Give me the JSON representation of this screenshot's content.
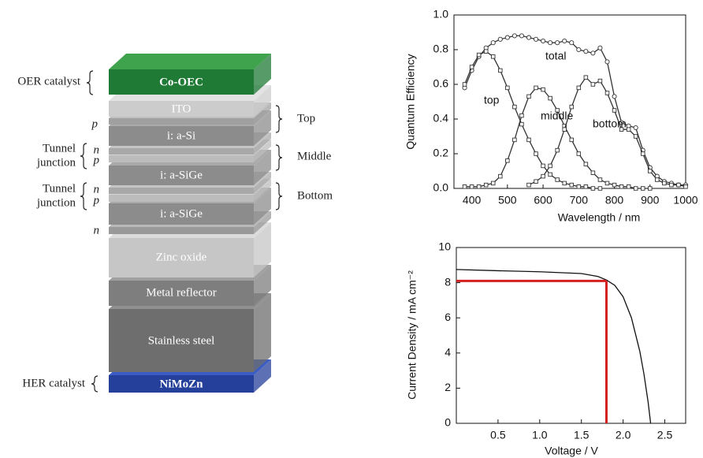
{
  "diagram": {
    "layers": [
      "Co-OEC",
      "ITO",
      "i: a-Si",
      "i: a-SiGe",
      "i: a-SiGe",
      "Zinc oxide",
      "Metal reflector",
      "Stainless steel",
      "NiMoZn"
    ],
    "left_labels": [
      "OER catalyst",
      "p",
      "Tunnel",
      "junction",
      "n",
      "p",
      "Tunnel",
      "junction",
      "n",
      "p",
      "n",
      "HER catalyst"
    ],
    "right_labels": [
      "Top",
      "Middle",
      "Bottom"
    ]
  },
  "chart_data": [
    {
      "type": "line",
      "x_label": "Wavelength / nm",
      "y_label": "Quantum Efficiency",
      "x": [
        380,
        400,
        420,
        440,
        460,
        480,
        500,
        520,
        540,
        560,
        580,
        600,
        620,
        640,
        660,
        680,
        700,
        720,
        740,
        760,
        780,
        800,
        820,
        840,
        860,
        880,
        900,
        920,
        940,
        960,
        980,
        1000
      ],
      "series": [
        {
          "name": "total",
          "color": "#333333",
          "marker": "circle",
          "values": [
            0.58,
            0.68,
            0.76,
            0.81,
            0.84,
            0.86,
            0.87,
            0.88,
            0.88,
            0.87,
            0.86,
            0.85,
            0.84,
            0.84,
            0.85,
            0.84,
            0.8,
            0.79,
            0.78,
            0.81,
            0.73,
            0.53,
            0.38,
            0.36,
            0.35,
            0.22,
            0.12,
            0.07,
            0.04,
            0.03,
            0.02,
            0.02
          ]
        },
        {
          "name": "top",
          "color": "#333333",
          "marker": "square",
          "values": [
            0.6,
            0.7,
            0.77,
            0.79,
            0.76,
            0.68,
            0.58,
            0.47,
            0.37,
            0.28,
            0.2,
            0.13,
            0.08,
            0.05,
            0.03,
            0.02,
            0.01,
            0.01,
            0.0,
            0.0,
            null,
            null,
            null,
            null,
            null,
            null,
            null,
            null,
            null,
            null,
            null,
            null
          ]
        },
        {
          "name": "middle",
          "color": "#333333",
          "marker": "square",
          "values": [
            0.01,
            0.01,
            0.01,
            0.02,
            0.03,
            0.07,
            0.16,
            0.28,
            0.42,
            0.53,
            0.58,
            0.57,
            0.52,
            0.45,
            0.36,
            0.28,
            0.2,
            0.14,
            0.09,
            0.05,
            0.03,
            0.02,
            0.01,
            0.01,
            0.0,
            0.0,
            0.0,
            null,
            null,
            null,
            null,
            null
          ]
        },
        {
          "name": "bottom",
          "color": "#333333",
          "marker": "square",
          "values": [
            null,
            null,
            null,
            null,
            null,
            null,
            null,
            null,
            null,
            0.02,
            0.04,
            0.07,
            0.13,
            0.22,
            0.34,
            0.47,
            0.58,
            0.64,
            0.6,
            0.62,
            0.55,
            0.45,
            0.34,
            0.34,
            0.3,
            0.2,
            0.1,
            0.05,
            0.03,
            0.02,
            0.02,
            0.01
          ]
        }
      ],
      "xlim": [
        350,
        1000
      ],
      "ylim": [
        0,
        1
      ],
      "xticks": [
        400,
        500,
        600,
        700,
        800,
        900,
        1000
      ],
      "yticks": [
        {
          "value": 0,
          "label": "0.0"
        },
        0.2,
        0.4,
        0.6,
        0.8,
        {
          "value": 1,
          "label": "1.0"
        }
      ]
    },
    {
      "type": "line",
      "x_label": "Voltage / V",
      "y_label": "Current Density / mA cm⁻²",
      "x": [
        0,
        0.5,
        1,
        1.5,
        1.7,
        1.8,
        1.9,
        2,
        2.1,
        2.2,
        2.25,
        2.3,
        2.33
      ],
      "series": [
        {
          "color": "#111111",
          "values": [
            8.75,
            8.68,
            8.62,
            8.52,
            8.35,
            8.15,
            7.85,
            7.2,
            6.0,
            4.1,
            2.8,
            1.2,
            0
          ]
        }
      ],
      "operating_point": {
        "x": 1.8,
        "y": 8.1,
        "color": "#d42020"
      },
      "xlim": [
        0,
        2.75
      ],
      "ylim": [
        0,
        10
      ],
      "xticks": [
        0.5,
        {
          "value": 1,
          "label": "1.0"
        },
        1.5,
        {
          "value": 2,
          "label": "2.0"
        },
        2.5
      ],
      "yticks": [
        0,
        2,
        4,
        6,
        8,
        10
      ]
    }
  ]
}
